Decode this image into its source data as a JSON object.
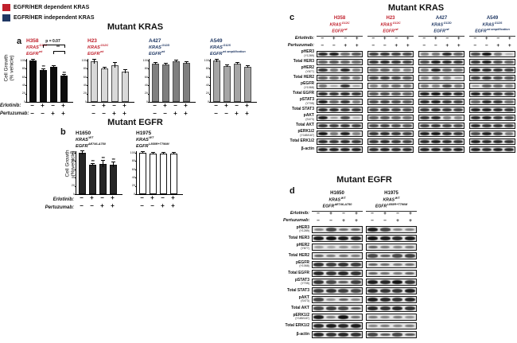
{
  "legend": {
    "items": [
      {
        "color": "#c0202c",
        "label": "EGFR/HER dependent KRAS"
      },
      {
        "color": "#203864",
        "label": "EGFR/HER independent KRAS"
      }
    ]
  },
  "panels": {
    "a": {
      "letter": "a",
      "title": "Mutant KRAS"
    },
    "b": {
      "letter": "b",
      "title": "Mutant EGFR"
    },
    "c": {
      "letter": "c",
      "title": "Mutant KRAS"
    },
    "d": {
      "letter": "d",
      "title": "Mutant EGFR"
    }
  },
  "treatment_labels": {
    "erlotinib": "Erlotinib:",
    "pertuzumab": "Pertuzumab:"
  },
  "treatments": {
    "erlotinib": [
      "−",
      "+",
      "−",
      "+"
    ],
    "pertuzumab": [
      "−",
      "−",
      "+",
      "+"
    ]
  },
  "axis": {
    "ylabel_line1": "Cell Growth",
    "ylabel_line2": "(% vehicle)",
    "yticks": [
      0,
      20,
      40,
      60,
      80,
      100
    ],
    "ylim": [
      0,
      100
    ]
  },
  "chart_data": [
    {
      "type": "bar",
      "panel": "a",
      "title": "Mutant KRAS",
      "ylabel": "Cell Growth (% vehicle)",
      "ylim": [
        0,
        100
      ],
      "categories": [
        "Erlotinib − / Pertuzumab −",
        "Erlotinib + / Pertuzumab −",
        "Erlotinib − / Pertuzumab +",
        "Erlotinib + / Pertuzumab +"
      ],
      "charts": [
        {
          "cell_line": "H358",
          "label_color": "#c0202c",
          "genotype": [
            [
              "KRAS",
              "G12C"
            ],
            [
              "EGFR",
              "wt"
            ]
          ],
          "bar_color": "#0d0d0d",
          "bar_border": "#0d0d0d",
          "values": [
            100,
            77,
            84,
            63
          ],
          "errors": [
            2,
            3,
            2,
            2
          ],
          "sig": [
            "",
            "***",
            "",
            "***"
          ],
          "brackets": [
            {
              "from": 1,
              "to": 3,
              "text": "p = 0.07",
              "level": 2
            },
            {
              "from": 2,
              "to": 3,
              "text": "**",
              "level": 1
            }
          ]
        },
        {
          "cell_line": "H23",
          "label_color": "#c0202c",
          "genotype": [
            [
              "KRAS",
              "G12C"
            ],
            [
              "EGFR",
              "wt"
            ]
          ],
          "bar_color": "#d9d9d9",
          "bar_border": "#4d4d4d",
          "values": [
            98,
            81,
            89,
            73
          ],
          "errors": [
            5,
            3,
            6,
            4
          ],
          "sig": [
            "",
            "",
            "",
            ""
          ],
          "brackets": []
        },
        {
          "cell_line": "A427",
          "label_color": "#203864",
          "genotype": [
            [
              "KRAS",
              "G12D"
            ],
            [
              "EGFR",
              "wt"
            ]
          ],
          "bar_color": "#7f7f7f",
          "bar_border": "#4d4d4d",
          "values": [
            93,
            91,
            98,
            95
          ],
          "errors": [
            2,
            2,
            2,
            2
          ],
          "sig": [
            "",
            "",
            "",
            ""
          ],
          "brackets": []
        },
        {
          "cell_line": "A549",
          "label_color": "#203864",
          "genotype": [
            [
              "KRAS",
              "G12S"
            ],
            [
              "EGFR",
              "wt amplification"
            ]
          ],
          "bar_color": "#a6a6a6",
          "bar_border": "#4d4d4d",
          "values": [
            100,
            87,
            92,
            84
          ],
          "errors": [
            3,
            2,
            2,
            2
          ],
          "sig": [
            "",
            "",
            "",
            ""
          ],
          "brackets": []
        }
      ]
    },
    {
      "type": "bar",
      "panel": "b",
      "title": "Mutant EGFR",
      "ylabel": "Cell Growth (% vehicle)",
      "ylim": [
        0,
        100
      ],
      "categories": [
        "Erlotinib − / Pertuzumab −",
        "Erlotinib + / Pertuzumab −",
        "Erlotinib − / Pertuzumab +",
        "Erlotinib + / Pertuzumab +"
      ],
      "charts": [
        {
          "cell_line": "H1650",
          "label_color": "#111111",
          "genotype": [
            [
              "KRAS",
              "WT"
            ],
            [
              "EGFR",
              "ΔE746-A750"
            ]
          ],
          "bar_color": "#262626",
          "bar_border": "#111111",
          "values": [
            100,
            72,
            74,
            71
          ],
          "errors": [
            4,
            2,
            8,
            6
          ],
          "sig": [
            "",
            "***",
            "***",
            "***"
          ],
          "brackets": []
        },
        {
          "cell_line": "H1975",
          "label_color": "#111111",
          "genotype": [
            [
              "KRAS",
              "WT"
            ],
            [
              "EGFR",
              "L858R+T790M"
            ]
          ],
          "bar_color": "#ffffff",
          "bar_border": "#111111",
          "values": [
            100,
            99,
            98,
            99
          ],
          "errors": [
            2,
            2,
            2,
            2
          ],
          "sig": [
            "",
            "",
            "",
            ""
          ],
          "brackets": []
        }
      ]
    }
  ],
  "blots": {
    "c": {
      "title": "Mutant KRAS",
      "groups": [
        "H358",
        "H23",
        "A427",
        "A549"
      ],
      "lanes_per_group": 4
    },
    "d": {
      "title": "Mutant EGFR",
      "groups": [
        "H1650",
        "H1975"
      ],
      "lanes_per_group": 4
    },
    "rows": [
      {
        "label": "pHER3",
        "site": "(Y1289)",
        "c": [
          0.85,
          0.9,
          0.55,
          0.65,
          0.75,
          0.8,
          0.75,
          0.7,
          0.45,
          0.5,
          0.85,
          0.6,
          0.7,
          0.95,
          0.5,
          0.25
        ],
        "d": [
          0.45,
          0.7,
          0.55,
          0.6,
          0.9,
          0.7,
          0.45,
          0.45
        ]
      },
      {
        "label": "Total HER3",
        "site": "",
        "c": [
          0.6,
          0.65,
          0.6,
          0.55,
          0.8,
          0.85,
          0.8,
          0.75,
          0.7,
          0.9,
          0.85,
          0.8,
          0.8,
          0.9,
          0.7,
          0.6
        ],
        "d": [
          0.9,
          0.95,
          0.9,
          0.85,
          0.95,
          0.9,
          0.85,
          0.9
        ]
      },
      {
        "label": "pHER2",
        "site": "(Y877)",
        "c": [
          0.8,
          0.5,
          0.85,
          0.45,
          0.55,
          0.6,
          0.5,
          0.45,
          0.5,
          0.85,
          0.6,
          0.55,
          0.9,
          0.85,
          0.8,
          0.75
        ],
        "d": [
          0.35,
          0.3,
          0.4,
          0.35,
          0.6,
          0.5,
          0.45,
          0.5
        ]
      },
      {
        "label": "Total HER2",
        "site": "",
        "c": [
          0.6,
          0.55,
          0.6,
          0.5,
          0.7,
          0.75,
          0.7,
          0.65,
          0.45,
          0.5,
          0.45,
          0.4,
          0.75,
          0.8,
          0.7,
          0.65
        ],
        "d": [
          0.6,
          0.5,
          0.55,
          0.5,
          0.7,
          0.65,
          0.7,
          0.75
        ]
      },
      {
        "label": "pEGFR",
        "site": "(Y1068)",
        "c": [
          0.5,
          0.3,
          0.8,
          0.35,
          0.45,
          0.5,
          0.55,
          0.5,
          0.5,
          0.45,
          0.7,
          0.5,
          0.4,
          0.6,
          0.55,
          0.45
        ],
        "d": [
          0.8,
          0.75,
          0.8,
          0.75,
          0.6,
          0.55,
          0.5,
          0.55
        ]
      },
      {
        "label": "Total EGFR",
        "site": "",
        "c": [
          0.85,
          0.8,
          0.85,
          0.8,
          0.65,
          0.7,
          0.65,
          0.6,
          0.9,
          0.95,
          0.9,
          0.85,
          0.9,
          0.85,
          0.8,
          0.75
        ],
        "d": [
          0.85,
          0.8,
          0.85,
          0.8,
          0.6,
          0.55,
          0.5,
          0.6
        ]
      },
      {
        "label": "pSTAT3",
        "site": "(Y705)",
        "c": [
          0.9,
          0.6,
          0.8,
          0.5,
          0.7,
          0.75,
          0.7,
          0.65,
          0.85,
          0.9,
          0.8,
          0.75,
          0.6,
          0.85,
          0.8,
          0.55
        ],
        "d": [
          0.8,
          0.7,
          0.65,
          0.75,
          0.9,
          0.85,
          0.95,
          0.8
        ]
      },
      {
        "label": "Total STAT3",
        "site": "",
        "c": [
          0.85,
          0.85,
          0.8,
          0.8,
          0.75,
          0.8,
          0.75,
          0.7,
          0.8,
          0.85,
          0.8,
          0.75,
          0.9,
          0.9,
          0.85,
          0.8
        ],
        "d": [
          0.75,
          0.8,
          0.75,
          0.7,
          0.85,
          0.8,
          0.8,
          0.9
        ]
      },
      {
        "label": "pAKT",
        "site": "(S473)",
        "c": [
          0.9,
          0.4,
          0.7,
          0.3,
          0.6,
          0.65,
          0.6,
          0.55,
          0.8,
          0.85,
          0.5,
          0.45,
          0.85,
          0.9,
          0.8,
          0.7
        ],
        "d": [
          0.7,
          0.4,
          0.6,
          0.45,
          0.9,
          0.85,
          0.8,
          0.85
        ]
      },
      {
        "label": "Total AKT",
        "site": "",
        "c": [
          0.8,
          0.75,
          0.8,
          0.75,
          0.7,
          0.75,
          0.7,
          0.65,
          0.75,
          0.8,
          0.75,
          0.7,
          0.85,
          0.8,
          0.8,
          0.75
        ],
        "d": [
          0.7,
          0.75,
          0.7,
          0.65,
          0.85,
          0.8,
          0.85,
          0.8
        ]
      },
      {
        "label": "pERK1/2",
        "site": "(Y185/187)",
        "c": [
          0.95,
          0.5,
          0.9,
          0.45,
          0.8,
          0.85,
          0.8,
          0.75,
          0.9,
          0.95,
          0.85,
          0.8,
          0.7,
          0.9,
          0.75,
          0.5
        ],
        "d": [
          0.9,
          0.5,
          0.95,
          0.55,
          0.5,
          0.45,
          0.5,
          0.4
        ]
      },
      {
        "label": "Total ERK1/2",
        "site": "",
        "c": [
          0.85,
          0.8,
          0.85,
          0.8,
          0.8,
          0.85,
          0.8,
          0.75,
          0.85,
          0.9,
          0.85,
          0.8,
          0.9,
          0.85,
          0.85,
          0.8
        ],
        "d": [
          0.85,
          0.9,
          0.85,
          0.9,
          0.45,
          0.5,
          0.45,
          0.5
        ]
      },
      {
        "label": "β-actin",
        "site": "",
        "c": [
          0.9,
          0.9,
          0.9,
          0.9,
          0.85,
          0.9,
          0.85,
          0.85,
          0.9,
          0.9,
          0.85,
          0.9,
          0.9,
          0.85,
          0.9,
          0.85
        ],
        "d": [
          0.85,
          0.8,
          0.85,
          0.8,
          0.7,
          0.65,
          0.7,
          0.65
        ]
      }
    ]
  }
}
